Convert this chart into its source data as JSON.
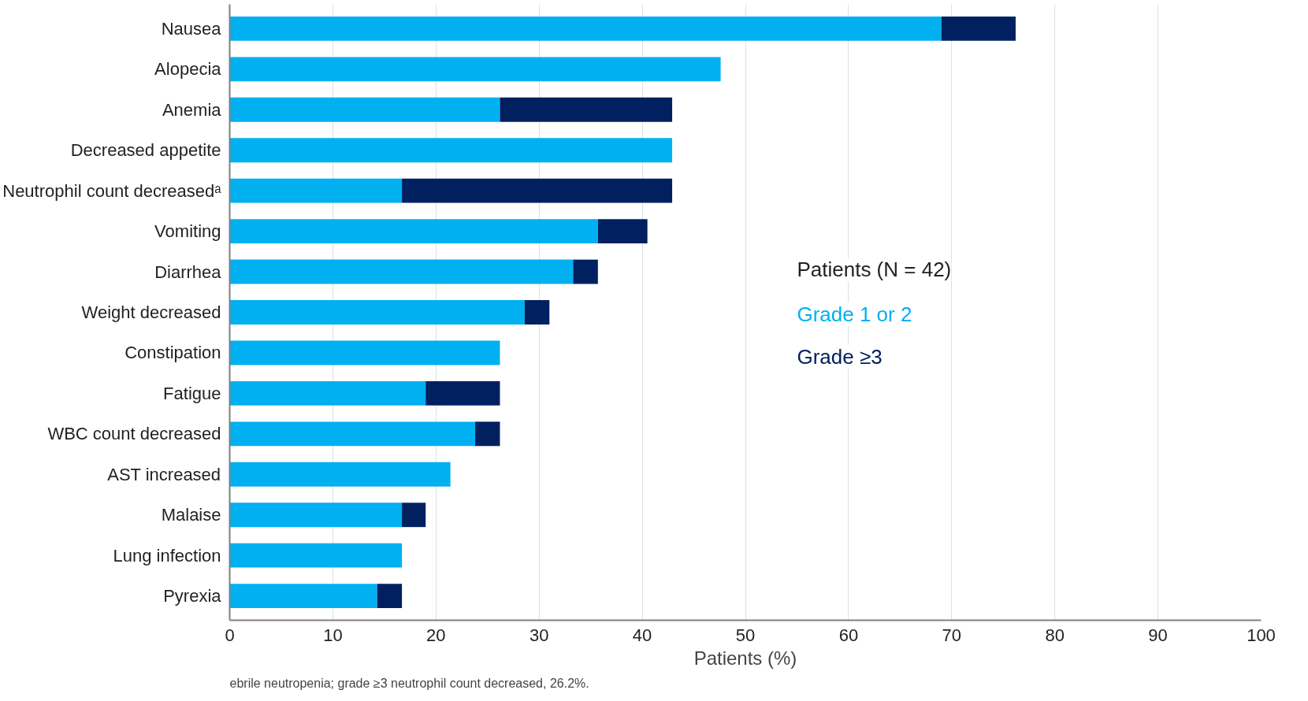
{
  "chart_data": {
    "type": "bar",
    "orientation": "horizontal",
    "stacked": true,
    "categories": [
      "Nausea",
      "Alopecia",
      "Anemia",
      "Decreased appetite",
      "Neutrophil count decreasedᵃ",
      "Vomiting",
      "Diarrhea",
      "Weight decreased",
      "Constipation",
      "Fatigue",
      "WBC count decreased",
      "AST increased",
      "Malaise",
      "Lung infection",
      "Pyrexia"
    ],
    "series": [
      {
        "name": "Grade 1 or 2",
        "color": "#00b0f0",
        "values": [
          69.0,
          47.6,
          26.2,
          42.9,
          16.7,
          35.7,
          33.3,
          28.6,
          26.2,
          19.0,
          23.8,
          21.4,
          16.7,
          16.7,
          14.3
        ]
      },
      {
        "name": "Grade ≥3",
        "color": "#002060",
        "values": [
          7.2,
          null,
          16.7,
          null,
          26.2,
          4.8,
          2.4,
          2.4,
          null,
          7.2,
          2.4,
          null,
          2.3,
          null,
          2.4
        ]
      }
    ],
    "xlim": [
      0,
      100
    ],
    "xticks": [
      0,
      10,
      20,
      30,
      40,
      50,
      60,
      70,
      80,
      90,
      100
    ],
    "xlabel": "Patients (%)",
    "grid": "x",
    "legend": "right",
    "legend_title": "Patients (N = 42)",
    "annotations": [
      "ebrile neutropenia; grade ≥3 neutrophil count decreased, 26.2%."
    ]
  }
}
